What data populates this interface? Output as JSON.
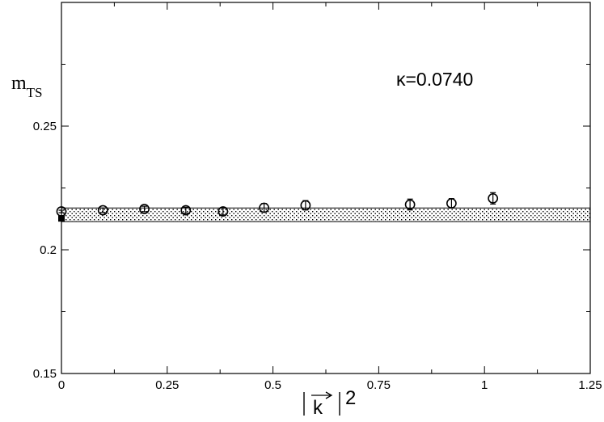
{
  "chart_data": {
    "type": "scatter",
    "title": "",
    "xlabel": "|k|²",
    "ylabel": "m_TS",
    "xlim": [
      0,
      1.25
    ],
    "ylim": [
      0.15,
      0.3
    ],
    "x_ticks": [
      0,
      0.25,
      0.5,
      0.75,
      1,
      1.25
    ],
    "x_tick_labels": [
      "0",
      "0.25",
      "0.5",
      "0.75",
      "1",
      "1.25"
    ],
    "y_ticks": [
      0.15,
      0.2,
      0.25
    ],
    "y_tick_labels": [
      "0.15",
      "0.2",
      "0.25"
    ],
    "grid": false,
    "annotation": "κ=0.0740",
    "band": {
      "low": 0.2114,
      "high": 0.2169
    },
    "series": [
      {
        "marker": "open-circle",
        "x": [
          0.0,
          0.098,
          0.196,
          0.294,
          0.382,
          0.479,
          0.577,
          0.824,
          0.922,
          1.02
        ],
        "y": [
          0.2155,
          0.216,
          0.2165,
          0.216,
          0.2155,
          0.217,
          0.218,
          0.2183,
          0.2188,
          0.2208
        ],
        "err": [
          0.0005,
          0.0009,
          0.0011,
          0.0012,
          0.0014,
          0.0017,
          0.0019,
          0.0022,
          0.0019,
          0.0023
        ]
      },
      {
        "marker": "filled-square",
        "x": [
          0.0
        ],
        "y": [
          0.2127
        ],
        "err": [
          0
        ]
      }
    ]
  }
}
